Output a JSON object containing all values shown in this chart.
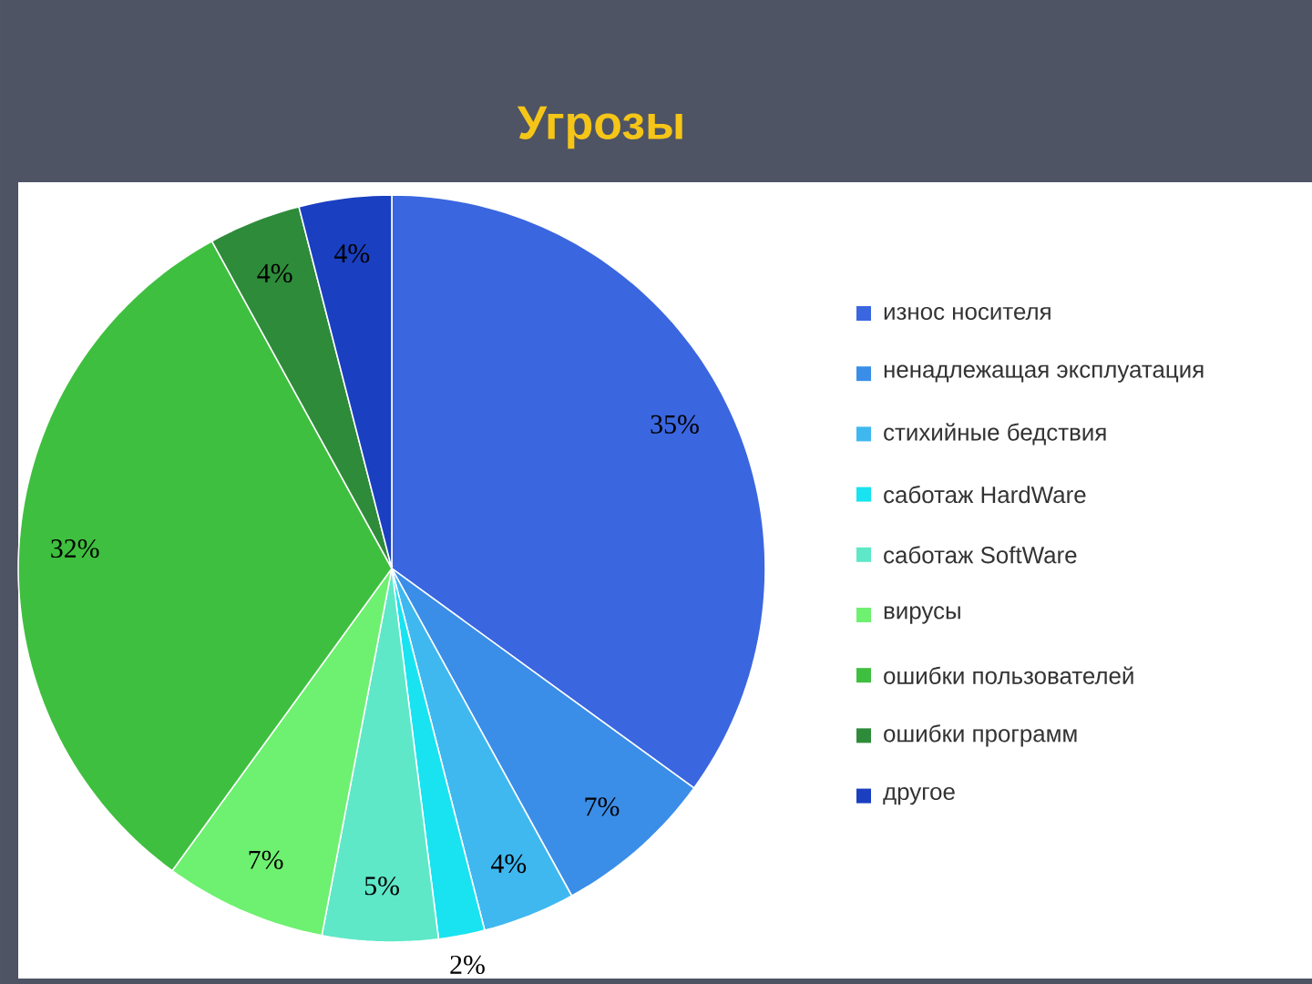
{
  "chart_data": {
    "type": "pie",
    "title": "Угрозы",
    "categories": [
      "износ носителя",
      "ненадлежащая эксплуатация",
      "стихийные бедствия",
      "саботаж HardWare",
      "саботаж SoftWare",
      "вирусы",
      "ошибки пользователей",
      "ошибки программ",
      "другое"
    ],
    "values": [
      35,
      7,
      4,
      2,
      5,
      7,
      32,
      4,
      4
    ],
    "colors": [
      "#3a66e0",
      "#3a8ee8",
      "#3fb8f0",
      "#19e3f0",
      "#5ee8c8",
      "#6ef070",
      "#3fbf3f",
      "#2e8b3a",
      "#1a3fc0"
    ],
    "value_labels": [
      "35%",
      "7%",
      "4%",
      "2%",
      "5%",
      "7%",
      "32%",
      "4%",
      "4%"
    ],
    "legend": "right"
  }
}
